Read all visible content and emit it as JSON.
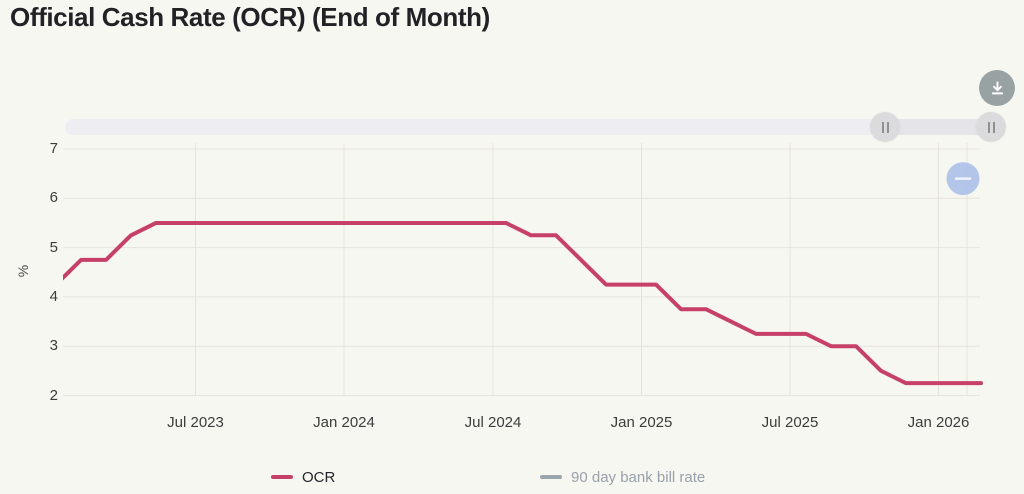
{
  "page": {
    "title": "Official Cash Rate (OCR) (End of Month)"
  },
  "controls": {
    "download_icon": "arrow-down-to-line",
    "slider_handle_icon": "double-bar-grip",
    "slider": {
      "left_handle_position": "near right end",
      "right_handle_position": "right end"
    }
  },
  "colors": {
    "background": "#f7f7f1",
    "ocr_line": "#c64069",
    "bill_rate": "#9aa6ad",
    "gridline": "#e5e3dc",
    "annotation_blue": "#adc1e8",
    "download_button": "#99a2a3"
  },
  "chart_data": {
    "type": "line",
    "title": "Official Cash Rate (OCR) (End of Month)",
    "xlabel": "",
    "ylabel": "%",
    "ylim": [
      2,
      7
    ],
    "grid": true,
    "legend_position": "bottom",
    "y_ticks": [
      "7",
      "6",
      "5",
      "4",
      "3",
      "2"
    ],
    "x_ticks": [
      "Jul 2023",
      "Jan 2024",
      "Jul 2024",
      "Jan 2025",
      "Jul 2025",
      "Jan 2026"
    ],
    "series": [
      {
        "name": "OCR",
        "color": "#c64069",
        "visible": true,
        "months": [
          "2023-01",
          "2023-02",
          "2023-03",
          "2023-04",
          "2023-05",
          "2023-06",
          "2023-07",
          "2023-08",
          "2023-09",
          "2023-10",
          "2023-11",
          "2023-12",
          "2024-01",
          "2024-02",
          "2024-03",
          "2024-04",
          "2024-05",
          "2024-06",
          "2024-07",
          "2024-08",
          "2024-09",
          "2024-10",
          "2024-11",
          "2024-12",
          "2025-01",
          "2025-02",
          "2025-03",
          "2025-04",
          "2025-05",
          "2025-06",
          "2025-07",
          "2025-08",
          "2025-09",
          "2025-10",
          "2025-11",
          "2025-12",
          "2026-01",
          "2026-02"
        ],
        "values": [
          4.25,
          4.75,
          4.75,
          5.25,
          5.5,
          5.5,
          5.5,
          5.5,
          5.5,
          5.5,
          5.5,
          5.5,
          5.5,
          5.5,
          5.5,
          5.5,
          5.5,
          5.5,
          5.5,
          5.25,
          5.25,
          4.75,
          4.25,
          4.25,
          4.25,
          3.75,
          3.75,
          3.5,
          3.25,
          3.25,
          3.25,
          3.0,
          3.0,
          2.5,
          2.25,
          2.25,
          2.25,
          2.25
        ]
      },
      {
        "name": "90 day bank bill rate",
        "color": "#9aa6ad",
        "visible": false,
        "values": []
      }
    ],
    "annotation": {
      "shape": "circle",
      "month": "2026-01",
      "y_value": 6.4,
      "color": "#adc1e8"
    }
  }
}
